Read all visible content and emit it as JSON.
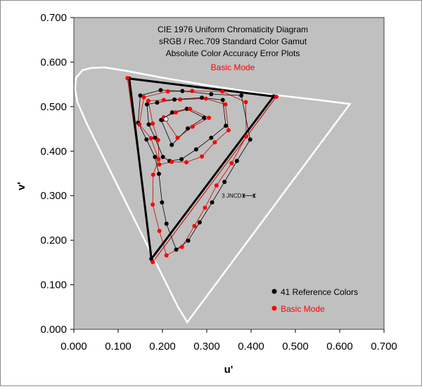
{
  "chart_data": {
    "type": "scatter",
    "title_lines": [
      "CIE 1976 Uniform Chromaticity Diagram",
      "sRGB / Rec.709 Standard Color Gamut",
      "Absolute Color Accuracy Error Plots"
    ],
    "mode_label": "Basic Mode",
    "xlabel": "u'",
    "ylabel": "v'",
    "xlim": [
      0,
      0.7
    ],
    "ylim": [
      0,
      0.7
    ],
    "x_ticks": [
      "0.000",
      "0.100",
      "0.200",
      "0.300",
      "0.400",
      "0.500",
      "0.600",
      "0.700"
    ],
    "y_ticks": [
      "0.000",
      "0.100",
      "0.200",
      "0.300",
      "0.400",
      "0.500",
      "0.600",
      "0.700"
    ],
    "grid": false,
    "legend_position": "bottom-right",
    "annotation": "3 JNCD",
    "colors": {
      "plot_bg": "#c0c0c0",
      "locus": "#ffffff",
      "reference": "#000000",
      "measured": "#ff0000",
      "mode_text": "#ff0000"
    },
    "locus": [
      [
        0.256,
        0.016
      ],
      [
        0.235,
        0.05
      ],
      [
        0.21,
        0.1
      ],
      [
        0.18,
        0.16
      ],
      [
        0.15,
        0.22
      ],
      [
        0.12,
        0.28
      ],
      [
        0.09,
        0.34
      ],
      [
        0.06,
        0.4
      ],
      [
        0.03,
        0.46
      ],
      [
        0.008,
        0.51
      ],
      [
        0.003,
        0.54
      ],
      [
        0.005,
        0.565
      ],
      [
        0.02,
        0.582
      ],
      [
        0.04,
        0.587
      ],
      [
        0.07,
        0.588
      ],
      [
        0.12,
        0.58
      ],
      [
        0.2,
        0.565
      ],
      [
        0.3,
        0.548
      ],
      [
        0.42,
        0.53
      ],
      [
        0.55,
        0.515
      ],
      [
        0.623,
        0.506
      ],
      [
        0.256,
        0.016
      ]
    ],
    "gamut_triangle": [
      [
        0.451,
        0.523
      ],
      [
        0.125,
        0.563
      ],
      [
        0.175,
        0.158
      ]
    ],
    "jncd_marker": {
      "center": [
        0.395,
        0.3
      ],
      "half_width": 0.012
    },
    "series": [
      {
        "name": "41 Reference Colors",
        "points": [
          [
            0.451,
            0.523
          ],
          [
            0.125,
            0.563
          ],
          [
            0.175,
            0.158
          ],
          [
            0.398,
            0.426
          ],
          [
            0.368,
            0.378
          ],
          [
            0.34,
            0.331
          ],
          [
            0.312,
            0.285
          ],
          [
            0.284,
            0.24
          ],
          [
            0.258,
            0.199
          ],
          [
            0.231,
            0.179
          ],
          [
            0.209,
            0.237
          ],
          [
            0.199,
            0.285
          ],
          [
            0.192,
            0.349
          ],
          [
            0.183,
            0.387
          ],
          [
            0.164,
            0.426
          ],
          [
            0.145,
            0.464
          ],
          [
            0.15,
            0.525
          ],
          [
            0.196,
            0.537
          ],
          [
            0.245,
            0.535
          ],
          [
            0.31,
            0.528
          ],
          [
            0.378,
            0.525
          ],
          [
            0.343,
            0.457
          ],
          [
            0.31,
            0.43
          ],
          [
            0.276,
            0.404
          ],
          [
            0.243,
            0.382
          ],
          [
            0.216,
            0.378
          ],
          [
            0.201,
            0.387
          ],
          [
            0.183,
            0.43
          ],
          [
            0.169,
            0.46
          ],
          [
            0.165,
            0.505
          ],
          [
            0.188,
            0.509
          ],
          [
            0.227,
            0.516
          ],
          [
            0.289,
            0.52
          ],
          [
            0.336,
            0.515
          ],
          [
            0.294,
            0.475
          ],
          [
            0.257,
            0.451
          ],
          [
            0.221,
            0.414
          ],
          [
            0.197,
            0.47
          ],
          [
            0.222,
            0.487
          ],
          [
            0.255,
            0.495
          ],
          [
            0.201,
            0.471
          ]
        ]
      },
      {
        "name": "Basic Mode",
        "points": [
          [
            0.457,
            0.522
          ],
          [
            0.121,
            0.564
          ],
          [
            0.178,
            0.151
          ],
          [
            0.389,
            0.433
          ],
          [
            0.356,
            0.373
          ],
          [
            0.322,
            0.323
          ],
          [
            0.296,
            0.273
          ],
          [
            0.272,
            0.232
          ],
          [
            0.244,
            0.185
          ],
          [
            0.209,
            0.166
          ],
          [
            0.193,
            0.221
          ],
          [
            0.178,
            0.28
          ],
          [
            0.179,
            0.347
          ],
          [
            0.191,
            0.382
          ],
          [
            0.174,
            0.429
          ],
          [
            0.148,
            0.46
          ],
          [
            0.158,
            0.521
          ],
          [
            0.212,
            0.534
          ],
          [
            0.267,
            0.535
          ],
          [
            0.335,
            0.534
          ],
          [
            0.388,
            0.51
          ],
          [
            0.349,
            0.447
          ],
          [
            0.318,
            0.42
          ],
          [
            0.289,
            0.388
          ],
          [
            0.254,
            0.375
          ],
          [
            0.221,
            0.376
          ],
          [
            0.193,
            0.37
          ],
          [
            0.19,
            0.425
          ],
          [
            0.178,
            0.462
          ],
          [
            0.168,
            0.513
          ],
          [
            0.203,
            0.515
          ],
          [
            0.24,
            0.516
          ],
          [
            0.298,
            0.518
          ],
          [
            0.342,
            0.505
          ],
          [
            0.305,
            0.475
          ],
          [
            0.268,
            0.455
          ],
          [
            0.234,
            0.43
          ],
          [
            0.203,
            0.476
          ],
          [
            0.23,
            0.487
          ],
          [
            0.262,
            0.495
          ],
          [
            0.208,
            0.472
          ]
        ]
      }
    ]
  }
}
